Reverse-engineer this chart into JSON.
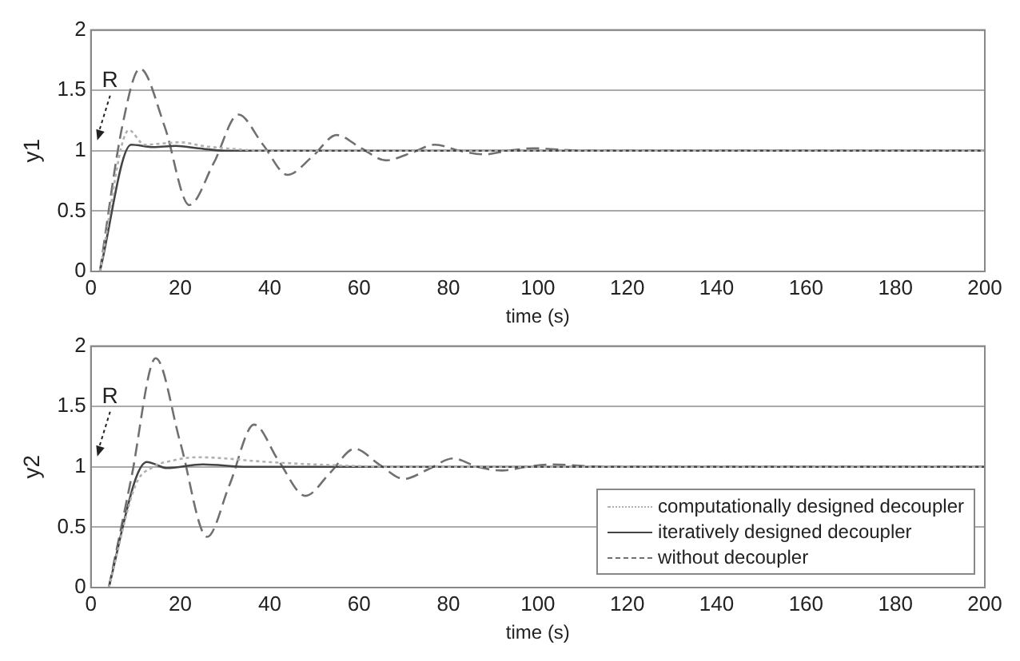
{
  "chart_data": [
    {
      "type": "line",
      "xlabel": "time (s)",
      "ylabel": "y1",
      "xlim": [
        0,
        200
      ],
      "xticks": [
        0,
        20,
        40,
        60,
        80,
        100,
        120,
        140,
        160,
        180,
        200
      ],
      "ylim": [
        0,
        2
      ],
      "yticks": [
        0,
        0.5,
        1,
        1.5,
        2
      ],
      "grid": "y",
      "legend": false,
      "annotations": [
        "R"
      ],
      "series": [
        {
          "color": "#b0b0b0",
          "line_style": "dotted",
          "x": [
            2,
            8.5,
            12,
            16,
            20,
            25,
            30,
            40,
            200
          ],
          "values": [
            0,
            1.17,
            1.05,
            1.06,
            1.07,
            1.04,
            1.02,
            1,
            1
          ]
        },
        {
          "color": "#444444",
          "line_style": "solid",
          "x": [
            2,
            9,
            14,
            19,
            24,
            30,
            40,
            200
          ],
          "values": [
            0,
            1.05,
            1.03,
            1.04,
            1.02,
            1,
            1,
            1
          ]
        },
        {
          "color": "#707070",
          "line_style": "dashed",
          "x": [
            2,
            7,
            11,
            16.5,
            22,
            27.5,
            33,
            38.5,
            44,
            49.5,
            55,
            60.5,
            66,
            71.5,
            77,
            82.5,
            88,
            93.5,
            99,
            110,
            200
          ],
          "values": [
            0,
            1.2,
            1.68,
            1.2,
            0.55,
            0.9,
            1.3,
            1.05,
            0.8,
            0.95,
            1.13,
            1.02,
            0.92,
            0.98,
            1.05,
            1.0,
            0.97,
            1.0,
            1.02,
            1,
            1
          ]
        }
      ]
    },
    {
      "type": "line",
      "xlabel": "time (s)",
      "ylabel": "y2",
      "xlim": [
        0,
        200
      ],
      "xticks": [
        0,
        20,
        40,
        60,
        80,
        100,
        120,
        140,
        160,
        180,
        200
      ],
      "ylim": [
        0,
        2
      ],
      "yticks": [
        0,
        0.5,
        1,
        1.5,
        2
      ],
      "grid": "y",
      "legend": "bottom right",
      "annotations": [
        "R"
      ],
      "series": [
        {
          "name": "computationally designed decoupler",
          "color": "#b0b0b0",
          "line_style": "dotted",
          "x": [
            4,
            10,
            14,
            18,
            24,
            30,
            36,
            50,
            70,
            200
          ],
          "values": [
            0,
            0.85,
            1.0,
            1.05,
            1.08,
            1.07,
            1.05,
            1.02,
            1,
            1
          ]
        },
        {
          "name": "iteratively designed decoupler",
          "color": "#444444",
          "line_style": "solid",
          "x": [
            4,
            10,
            12.5,
            17,
            25,
            35,
            200
          ],
          "values": [
            0,
            0.9,
            1.04,
            0.99,
            1.02,
            1.0,
            1
          ]
        },
        {
          "name": "without decoupler",
          "color": "#707070",
          "line_style": "dashed",
          "x": [
            4,
            9,
            14.5,
            20,
            26,
            31,
            36.5,
            42,
            48,
            53.5,
            59,
            64.5,
            70,
            75.5,
            81,
            86.5,
            92,
            97.5,
            103,
            115,
            200
          ],
          "values": [
            0,
            0.9,
            1.9,
            1.2,
            0.42,
            0.85,
            1.35,
            1.05,
            0.76,
            0.95,
            1.15,
            1.02,
            0.9,
            0.98,
            1.07,
            1.0,
            0.97,
            1.0,
            1.02,
            1,
            1
          ]
        }
      ]
    }
  ]
}
